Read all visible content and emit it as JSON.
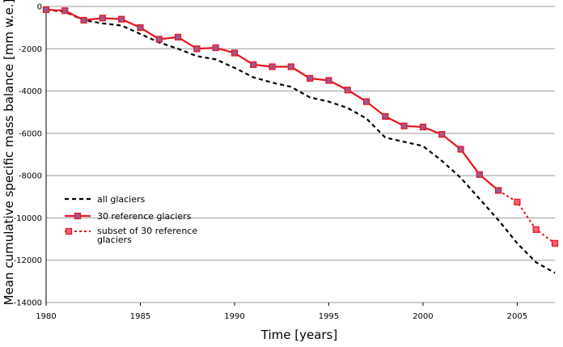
{
  "chart_data": {
    "type": "line",
    "title": "",
    "xlabel": "Time [years]",
    "ylabel": "Mean cumulative specific mass balance [mm w.e.]",
    "xlim": [
      1980,
      2007
    ],
    "ylim": [
      -14000,
      0
    ],
    "x_ticks": [
      "1980",
      "1985",
      "1990",
      "1995",
      "2000",
      "2005"
    ],
    "y_ticks": [
      "0",
      "-2000",
      "-4000",
      "-6000",
      "-8000",
      "-10000",
      "-12000",
      "-14000"
    ],
    "grid": "horizontal",
    "legend_position": "lower-left",
    "colors": {
      "all_glaciers": "#000000",
      "reference_line": "#e8141b",
      "reference_marker_fill": "#a0568f",
      "subset_marker_fill": "#f06470",
      "grid": "#999999"
    },
    "series": [
      {
        "name": "all glaciers",
        "style": "dashed",
        "x": [
          1980,
          1981,
          1982,
          1983,
          1984,
          1985,
          1986,
          1987,
          1988,
          1989,
          1990,
          1991,
          1992,
          1993,
          1994,
          1995,
          1996,
          1997,
          1998,
          1999,
          2000,
          2001,
          2002,
          2003,
          2004,
          2005,
          2006,
          2007
        ],
        "y": [
          -150,
          -250,
          -650,
          -800,
          -900,
          -1300,
          -1700,
          -2000,
          -2350,
          -2500,
          -2900,
          -3350,
          -3600,
          -3800,
          -4300,
          -4500,
          -4800,
          -5300,
          -6200,
          -6400,
          -6600,
          -7300,
          -8100,
          -9100,
          -10100,
          -11200,
          -12100,
          -12600
        ]
      },
      {
        "name": "30 reference glaciers",
        "style": "solid-markers",
        "x": [
          1980,
          1981,
          1982,
          1983,
          1984,
          1985,
          1986,
          1987,
          1988,
          1989,
          1990,
          1991,
          1992,
          1993,
          1994,
          1995,
          1996,
          1997,
          1998,
          1999,
          2000,
          2001,
          2002,
          2003,
          2004
        ],
        "y": [
          -150,
          -200,
          -650,
          -550,
          -600,
          -1000,
          -1550,
          -1450,
          -2000,
          -1950,
          -2200,
          -2750,
          -2850,
          -2850,
          -3400,
          -3500,
          -3950,
          -4500,
          -5200,
          -5650,
          -5700,
          -6050,
          -6750,
          -7950,
          -8700
        ]
      },
      {
        "name": "subset of 30 reference glaciers",
        "style": "dotted-markers",
        "x": [
          2004,
          2005,
          2006,
          2007
        ],
        "y": [
          -8700,
          -9250,
          -10550,
          -11200
        ]
      }
    ]
  }
}
